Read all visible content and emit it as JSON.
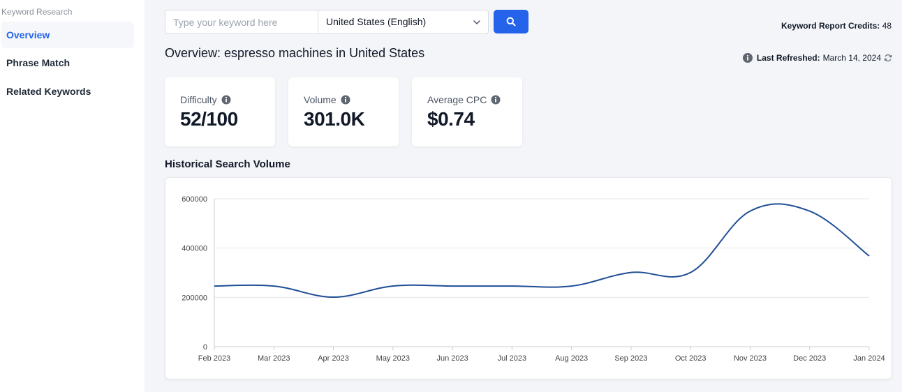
{
  "sidebar": {
    "heading": "Keyword Research",
    "items": [
      {
        "label": "Overview",
        "active": true
      },
      {
        "label": "Phrase Match",
        "active": false
      },
      {
        "label": "Related Keywords",
        "active": false
      }
    ]
  },
  "search": {
    "placeholder": "Type your keyword here",
    "value": "",
    "country": "United States (English)",
    "button_icon": "search-icon"
  },
  "credits": {
    "label": "Keyword Report Credits:",
    "value": "48"
  },
  "page_title": "Overview: espresso machines in United States",
  "refreshed": {
    "label": "Last Refreshed:",
    "date": "March 14, 2024"
  },
  "metrics": [
    {
      "label": "Difficulty",
      "value": "52/100"
    },
    {
      "label": "Volume",
      "value": "301.0K"
    },
    {
      "label": "Average CPC",
      "value": "$0.74"
    }
  ],
  "chart_title": "Historical Search Volume",
  "colors": {
    "accent": "#2563eb",
    "line": "#1f4e96"
  },
  "chart_data": {
    "type": "line",
    "categories": [
      "Feb 2023",
      "Mar 2023",
      "Apr 2023",
      "May 2023",
      "Jun 2023",
      "Jul 2023",
      "Aug 2023",
      "Sep 2023",
      "Oct 2023",
      "Nov 2023",
      "Dec 2023",
      "Jan 2024"
    ],
    "series": [
      {
        "values": [
          246000,
          246000,
          201000,
          246000,
          246000,
          246000,
          246000,
          301000,
          301000,
          550000,
          550000,
          368000
        ]
      }
    ],
    "ylim": [
      0,
      600000
    ],
    "yticks": [
      0,
      200000,
      400000,
      600000
    ],
    "ytick_labels": [
      "0",
      "200000",
      "400000",
      "600000"
    ],
    "grid": true,
    "xlabel": "",
    "ylabel": ""
  }
}
